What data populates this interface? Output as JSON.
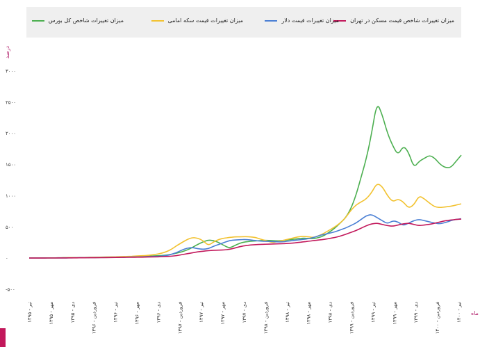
{
  "chart_data": {
    "type": "line",
    "ylabel": "درصد",
    "xlabel": "ماه",
    "ylim": [
      -500,
      3000
    ],
    "yticks": [
      {
        "value": 3000,
        "label": "۳۰۰۰"
      },
      {
        "value": 2500,
        "label": "۲۵۰۰"
      },
      {
        "value": 2000,
        "label": "۲۰۰۰"
      },
      {
        "value": 1500,
        "label": "۱۵۰۰"
      },
      {
        "value": 1000,
        "label": "۱۰۰۰"
      },
      {
        "value": 500,
        "label": "۵۰۰"
      },
      {
        "value": 0,
        "label": "۰"
      },
      {
        "value": -500,
        "label": "-۵۰۰"
      }
    ],
    "xtick_labels": [
      "تیر - ۱۳۹۵",
      "مهر - ۱۳۹۵",
      "دی - ۱۳۹۵",
      "فروردین - ۱۳۹۶",
      "تیر - ۱۳۹۶",
      "مهر - ۱۳۹۶",
      "دی - ۱۳۹۶",
      "فروردین - ۱۳۹۷",
      "تیر - ۱۳۹۷",
      "مهر - ۱۳۹۷",
      "دی - ۱۳۹۷",
      "فروردین - ۱۳۹۸",
      "تیر - ۱۳۹۸",
      "مهر - ۱۳۹۸",
      "دی - ۱۳۹۸",
      "فروردین - ۱۳۹۹",
      "تیر - ۱۳۹۹",
      "مهر - ۱۳۹۹",
      "دی - ۱۳۹۹",
      "فروردین - ۱۴۰۰",
      "تیر - ۱۴۰۰"
    ],
    "legend_position": "top",
    "grid": false,
    "series": [
      {
        "name": "میزان تغییرات شاخص کل بورس",
        "color": "#4caf50",
        "values": [
          0,
          1,
          2,
          3,
          4,
          4,
          5,
          6,
          7,
          8,
          9,
          10,
          10,
          11,
          12,
          14,
          15,
          16,
          18,
          20,
          22,
          25,
          28,
          32,
          36,
          40,
          48,
          60,
          80,
          100,
          130,
          170,
          220,
          260,
          290,
          280,
          250,
          200,
          160,
          200,
          240,
          260,
          270,
          275,
          280,
          285,
          280,
          275,
          280,
          290,
          300,
          310,
          320,
          315,
          310,
          330,
          360,
          420,
          480,
          560,
          640,
          780,
          1000,
          1300,
          1600,
          2000,
          2500,
          2300,
          2000,
          1800,
          1650,
          1800,
          1700,
          1450,
          1550,
          1600,
          1650,
          1600,
          1500,
          1450,
          1450,
          1550,
          1650
        ]
      },
      {
        "name": "میزان تغییرات قیمت سکه امامی",
        "color": "#f2c230",
        "values": [
          0,
          0,
          1,
          2,
          3,
          3,
          4,
          5,
          6,
          7,
          8,
          10,
          12,
          14,
          16,
          18,
          20,
          22,
          25,
          28,
          32,
          36,
          40,
          48,
          60,
          75,
          100,
          140,
          200,
          250,
          300,
          330,
          320,
          280,
          200,
          260,
          300,
          320,
          330,
          340,
          340,
          345,
          340,
          330,
          300,
          280,
          250,
          260,
          280,
          300,
          320,
          340,
          350,
          340,
          330,
          360,
          400,
          450,
          500,
          560,
          640,
          760,
          850,
          900,
          950,
          1050,
          1200,
          1150,
          1000,
          900,
          950,
          900,
          800,
          850,
          1000,
          950,
          880,
          820,
          810,
          820,
          830,
          850,
          870
        ]
      },
      {
        "name": "میزان تغییرات قیمت دلار",
        "color": "#4a7fd4",
        "values": [
          0,
          0,
          1,
          1,
          2,
          2,
          3,
          3,
          4,
          5,
          6,
          7,
          8,
          9,
          10,
          11,
          12,
          13,
          14,
          16,
          18,
          20,
          22,
          25,
          28,
          32,
          40,
          60,
          90,
          130,
          160,
          170,
          150,
          140,
          150,
          190,
          220,
          250,
          280,
          290,
          295,
          300,
          290,
          280,
          270,
          270,
          265,
          260,
          260,
          270,
          280,
          290,
          300,
          310,
          330,
          360,
          380,
          400,
          420,
          450,
          480,
          520,
          560,
          620,
          680,
          700,
          650,
          600,
          550,
          600,
          580,
          520,
          560,
          600,
          620,
          600,
          580,
          560,
          550,
          570,
          600,
          620,
          630
        ]
      },
      {
        "name": "میزان تغییرات شاخص قیمت مسکن در تهران",
        "color": "#c2185b",
        "values": [
          0,
          0,
          1,
          1,
          2,
          2,
          3,
          3,
          4,
          4,
          5,
          5,
          6,
          7,
          8,
          9,
          10,
          11,
          12,
          13,
          14,
          15,
          16,
          18,
          20,
          22,
          25,
          30,
          40,
          55,
          70,
          85,
          100,
          110,
          120,
          125,
          128,
          130,
          140,
          160,
          185,
          200,
          210,
          215,
          220,
          222,
          225,
          228,
          230,
          235,
          240,
          250,
          260,
          270,
          280,
          290,
          300,
          315,
          330,
          350,
          380,
          410,
          440,
          480,
          520,
          550,
          560,
          540,
          520,
          510,
          530,
          550,
          560,
          540,
          520,
          530,
          540,
          560,
          580,
          600,
          610,
          620,
          625
        ]
      }
    ]
  }
}
